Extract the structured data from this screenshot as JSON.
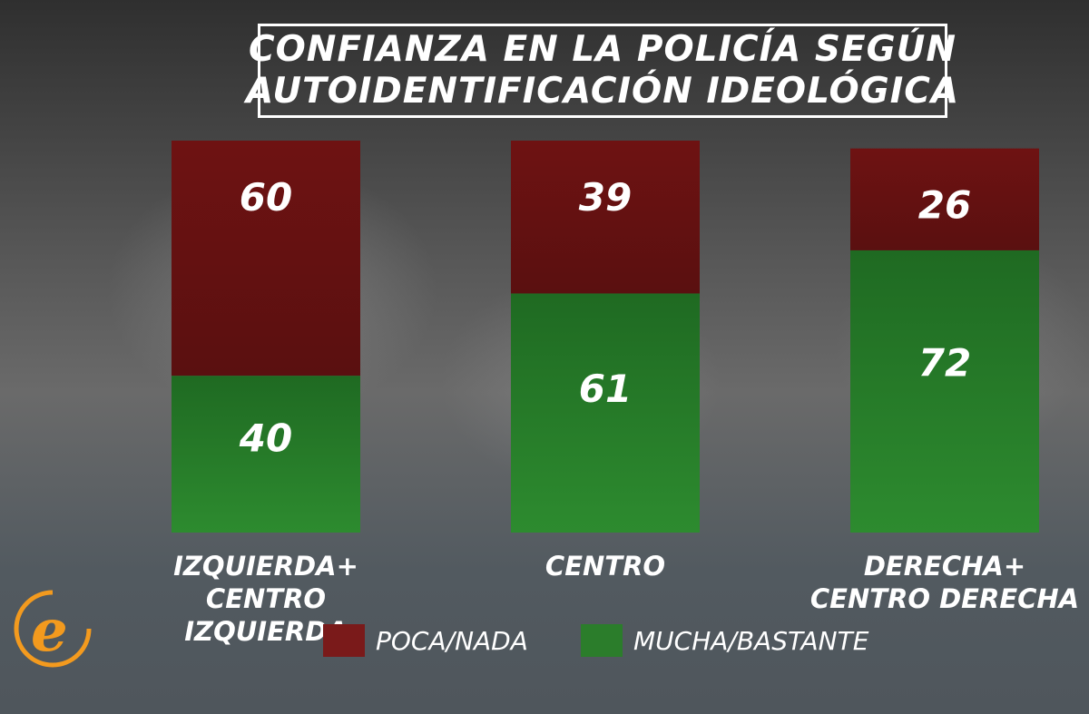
{
  "title_lines": [
    "CONFIANZA EN LA POLICÍA SEGÚN",
    "AUTOIDENTIFICACIÓN IDEOLÓGICA"
  ],
  "chart_data": {
    "type": "bar",
    "stacked": true,
    "title": "CONFIANZA EN LA POLICÍA SEGÚN AUTOIDENTIFICACIÓN IDEOLÓGICA",
    "categories": [
      "IZQUIERDA+\nCENTRO IZQUIERDA",
      "CENTRO",
      "DERECHA+\nCENTRO DERECHA"
    ],
    "series": [
      {
        "name": "MUCHA/BASTANTE",
        "values": [
          40,
          61,
          72
        ],
        "color": "#2b7d2b"
      },
      {
        "name": "POCA/NADA",
        "values": [
          60,
          39,
          26
        ],
        "color": "#7a1a1a"
      }
    ],
    "ylim": [
      0,
      100
    ],
    "legend_position": "bottom",
    "grid": false
  },
  "logo": {
    "letter": "e",
    "color": "#f39a1e"
  }
}
